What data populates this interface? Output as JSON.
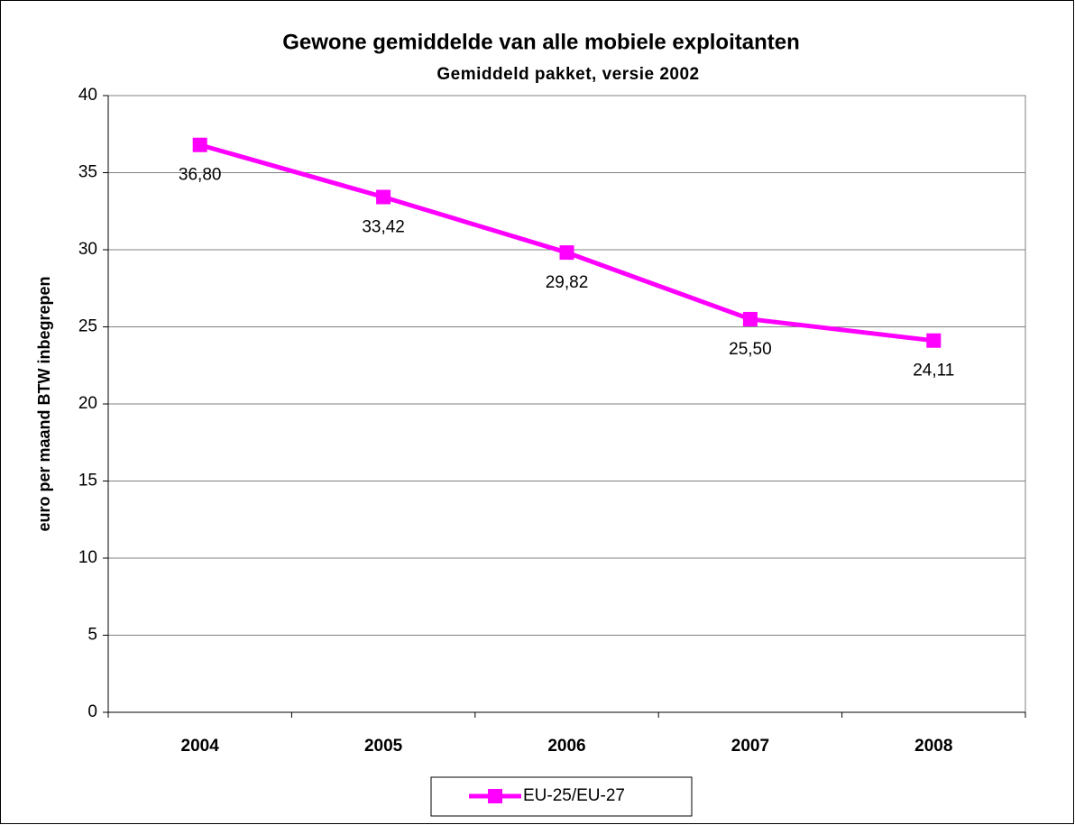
{
  "chart_data": {
    "type": "line",
    "title": "Gewone gemiddelde van alle mobiele exploitanten",
    "subtitle": "Gemiddeld pakket, versie 2002",
    "y_label": "euro per maand BTW inbegrepen",
    "categories": [
      "2004",
      "2005",
      "2006",
      "2007",
      "2008"
    ],
    "series": [
      {
        "name": "EU-25/EU-27",
        "color": "#ff00ff",
        "values": [
          36.8,
          33.42,
          29.82,
          25.5,
          24.11
        ],
        "value_labels": [
          "36,80",
          "33,42",
          "29,82",
          "25,50",
          "24,11"
        ]
      }
    ],
    "ylim": [
      0,
      40
    ],
    "yticks": [
      0,
      5,
      10,
      15,
      20,
      25,
      30,
      35,
      40
    ],
    "grid": true,
    "legend": "bottom"
  }
}
